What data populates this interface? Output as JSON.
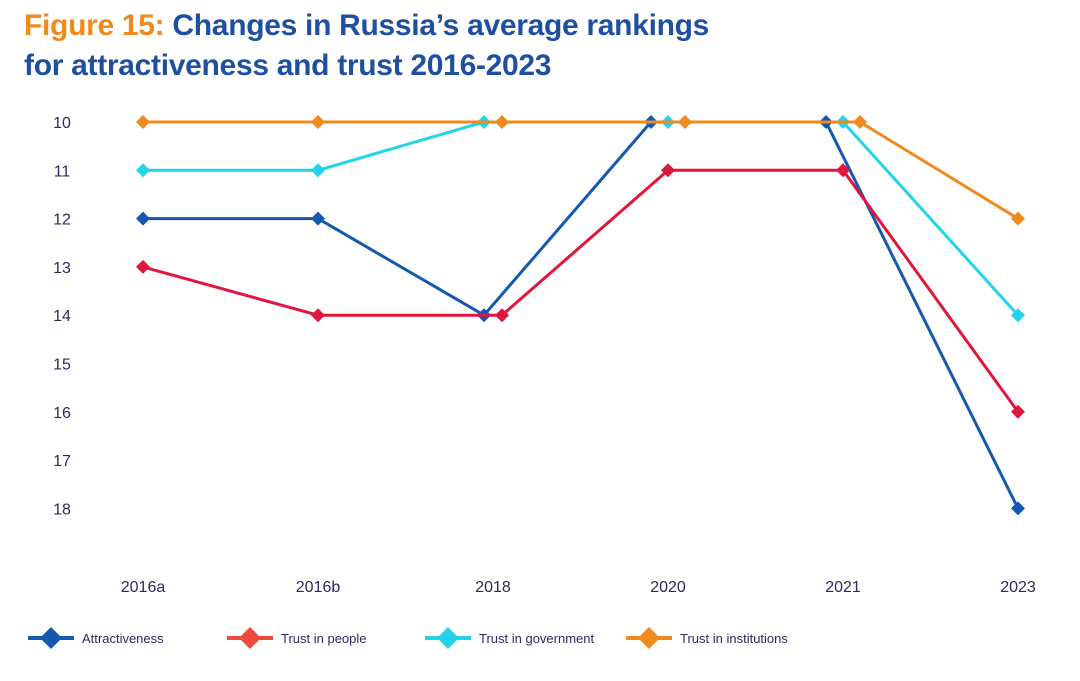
{
  "title": {
    "figure_label": "Figure 15:",
    "line1": "Changes in Russia’s average rankings",
    "line2": "for attractiveness and trust 2016-2023"
  },
  "chart_data": {
    "type": "line",
    "title": "Figure 15: Changes in Russia’s average rankings for attractiveness and trust 2016-2023",
    "xlabel": "",
    "ylabel": "",
    "categories": [
      "2016a",
      "2016b",
      "2018",
      "2020",
      "2021",
      "2023"
    ],
    "ylim": [
      10,
      18
    ],
    "y_inverted": true,
    "y_ticks": [
      10,
      11,
      12,
      13,
      14,
      15,
      16,
      17,
      18
    ],
    "grid": false,
    "legend_position": "bottom",
    "series": [
      {
        "name": "Attractiveness",
        "color": "#1558b0",
        "values": [
          12,
          12,
          14,
          10,
          10,
          18
        ]
      },
      {
        "name": "Trust in people",
        "color": "#e0163c",
        "legend_color": "#f04a3c",
        "values": [
          13,
          14,
          14,
          11,
          11,
          16
        ]
      },
      {
        "name": "Trust in government",
        "color": "#22d3ea",
        "values": [
          11,
          11,
          10,
          10,
          10,
          14
        ]
      },
      {
        "name": "Trust in institutions",
        "color": "#f08a1c",
        "values": [
          10,
          10,
          10,
          10,
          10,
          12
        ]
      }
    ]
  }
}
